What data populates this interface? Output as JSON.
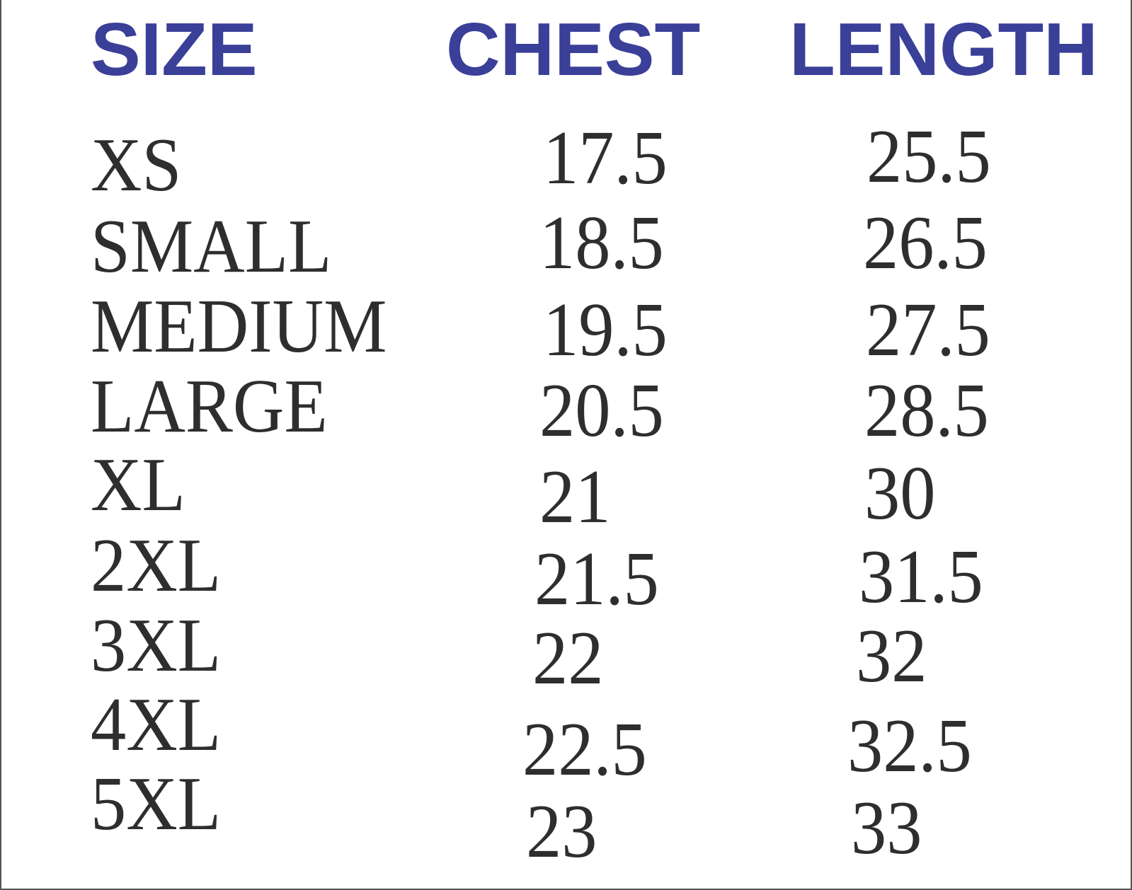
{
  "headers": {
    "size": "SIZE",
    "chest": "CHEST",
    "length": "LENGTH"
  },
  "header_color": "#3a3f98",
  "rows": [
    {
      "size": "XS",
      "chest": "17.5",
      "length": "25.5"
    },
    {
      "size": "SMALL",
      "chest": "18.5",
      "length": "26.5"
    },
    {
      "size": "MEDIUM",
      "chest": "19.5",
      "length": "27.5"
    },
    {
      "size": "LARGE",
      "chest": "20.5",
      "length": "28.5"
    },
    {
      "size": "XL",
      "chest": "21",
      "length": "30"
    },
    {
      "size": "2XL",
      "chest": "21.5",
      "length": "31.5"
    },
    {
      "size": "3XL",
      "chest": "22",
      "length": "32"
    },
    {
      "size": "4XL",
      "chest": "22.5",
      "length": "32.5"
    },
    {
      "size": "5XL",
      "chest": "23",
      "length": "33"
    }
  ]
}
